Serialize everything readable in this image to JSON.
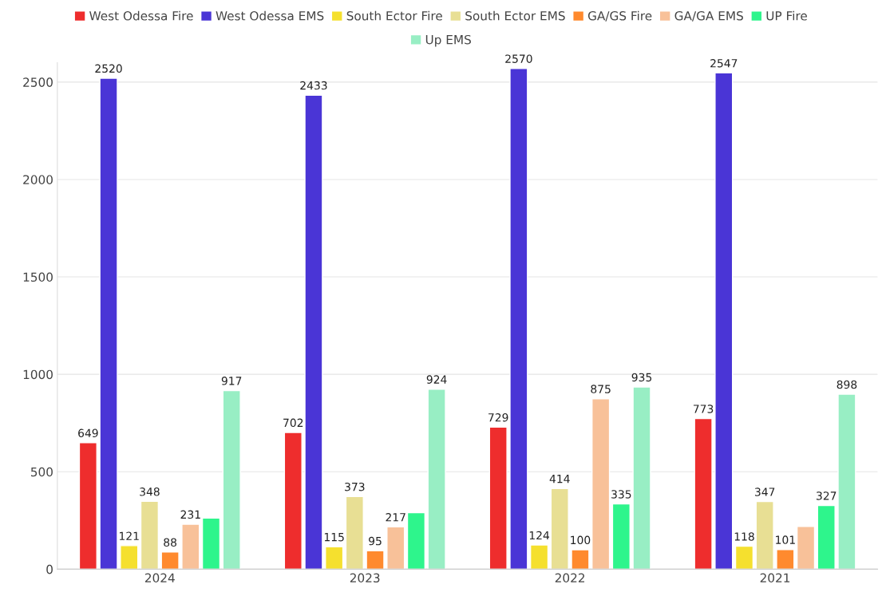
{
  "chart_data": {
    "type": "bar",
    "categories": [
      "2024",
      "2023",
      "2022",
      "2021"
    ],
    "series": [
      {
        "name": "West Odessa Fire",
        "color": "#ee2d2d",
        "values": [
          649,
          702,
          729,
          773
        ],
        "value_labels": [
          "649",
          "702",
          "729",
          "773"
        ]
      },
      {
        "name": "West Odessa EMS",
        "color": "#4a35d6",
        "values": [
          2520,
          2433,
          2570,
          2547
        ],
        "value_labels": [
          "2520",
          "2433",
          "2570",
          "2547"
        ]
      },
      {
        "name": "South Ector Fire",
        "color": "#f5e02e",
        "values": [
          121,
          115,
          124,
          118
        ],
        "value_labels": [
          "121",
          "115",
          "124",
          "118"
        ]
      },
      {
        "name": "South Ector EMS",
        "color": "#e8df94",
        "values": [
          348,
          373,
          414,
          347
        ],
        "value_labels": [
          "348",
          "373",
          "414",
          "347"
        ]
      },
      {
        "name": "GA/GS Fire",
        "color": "#ff8a2e",
        "values": [
          88,
          95,
          100,
          101
        ],
        "value_labels": [
          "88",
          "95",
          "100",
          "101"
        ]
      },
      {
        "name": "GA/GA EMS",
        "color": "#f8c199",
        "values": [
          231,
          217,
          875,
          219
        ],
        "value_labels": [
          "231",
          "217",
          "875",
          null
        ]
      },
      {
        "name": "UP Fire",
        "color": "#2ef58c",
        "values": [
          262,
          290,
          335,
          327
        ],
        "value_labels": [
          null,
          null,
          "335",
          "327"
        ]
      },
      {
        "name": "Up EMS",
        "color": "#98eec4",
        "values": [
          917,
          924,
          935,
          898
        ],
        "value_labels": [
          "917",
          "924",
          "935",
          "898"
        ]
      }
    ],
    "ylim": [
      0,
      2600
    ],
    "yticks": [
      0,
      500,
      1000,
      1500,
      2000,
      2500
    ],
    "grid": "y",
    "legend": "top"
  }
}
